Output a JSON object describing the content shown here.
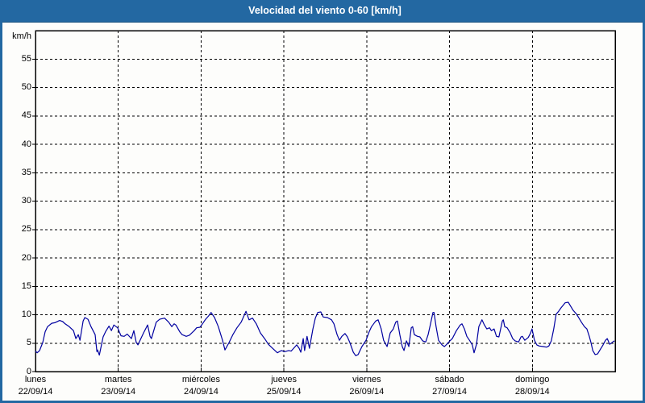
{
  "title": "Velocidad del viento 0-60 [km/h]",
  "colors": {
    "title_bar": "#2368A2",
    "title_text": "#FFFFFF",
    "frame": "#2368A2",
    "plot_border": "#000000",
    "grid": "#000000",
    "line": "#0000A0",
    "background": "#FDFDFB"
  },
  "chart_data": {
    "type": "line",
    "title": "Velocidad del viento 0-60 [km/h]",
    "y_unit_label": "km/h",
    "ylim": [
      0,
      60
    ],
    "ytick_step": 5,
    "ytick_labels": [
      "0",
      "5",
      "10",
      "15",
      "20",
      "25",
      "30",
      "35",
      "40",
      "45",
      "50",
      "55"
    ],
    "xlim": [
      0,
      168
    ],
    "x_unit": "hours",
    "grid": "dashed",
    "legend": "none",
    "x_axis_days": [
      {
        "name": "lunes",
        "date": "22/09/14"
      },
      {
        "name": "martes",
        "date": "23/09/14"
      },
      {
        "name": "miércoles",
        "date": "24/09/14"
      },
      {
        "name": "jueves",
        "date": "25/09/14"
      },
      {
        "name": "viernes",
        "date": "26/09/14"
      },
      {
        "name": "sábado",
        "date": "27/09/14"
      },
      {
        "name": "domingo",
        "date": "28/09/14"
      }
    ],
    "series": [
      {
        "name": "velocidad-del-viento",
        "color": "#0000A0",
        "points": [
          [
            0,
            3.6
          ],
          [
            0.5,
            3.3
          ],
          [
            1.2,
            3.7
          ],
          [
            2.1,
            5.1
          ],
          [
            2.8,
            7
          ],
          [
            3.5,
            7.9
          ],
          [
            4.7,
            8.5
          ],
          [
            5.6,
            8.6
          ],
          [
            7,
            9
          ],
          [
            7.9,
            8.8
          ],
          [
            8.6,
            8.4
          ],
          [
            9.8,
            7.9
          ],
          [
            11,
            7.2
          ],
          [
            11.7,
            5.8
          ],
          [
            12.4,
            6.5
          ],
          [
            12.9,
            5.5
          ],
          [
            13.8,
            8.9
          ],
          [
            14.3,
            9.5
          ],
          [
            15.2,
            9.2
          ],
          [
            16.1,
            7.9
          ],
          [
            17.3,
            6.5
          ],
          [
            17.8,
            3.5
          ],
          [
            18,
            3.8
          ],
          [
            18.5,
            2.9
          ],
          [
            19.6,
            6.1
          ],
          [
            20.3,
            7
          ],
          [
            21.3,
            8
          ],
          [
            22,
            7.2
          ],
          [
            22.7,
            8.2
          ],
          [
            23.8,
            7.7
          ],
          [
            24.8,
            6.3
          ],
          [
            25.7,
            6.2
          ],
          [
            26.6,
            6.6
          ],
          [
            27.8,
            5.8
          ],
          [
            28.5,
            7.2
          ],
          [
            29.2,
            5.1
          ],
          [
            29.7,
            4.7
          ],
          [
            31.3,
            6.8
          ],
          [
            32.5,
            8.2
          ],
          [
            33.2,
            6.2
          ],
          [
            33.6,
            5.8
          ],
          [
            35,
            8.7
          ],
          [
            36,
            9.2
          ],
          [
            37.4,
            9.4
          ],
          [
            38.6,
            8.7
          ],
          [
            39.5,
            7.9
          ],
          [
            40.2,
            8.4
          ],
          [
            40.7,
            8.2
          ],
          [
            41.8,
            7
          ],
          [
            42.5,
            6.5
          ],
          [
            43.7,
            6.2
          ],
          [
            44.6,
            6.4
          ],
          [
            46,
            7.2
          ],
          [
            46.7,
            7.7
          ],
          [
            47.7,
            7.8
          ],
          [
            48.4,
            8.4
          ],
          [
            49.3,
            9.2
          ],
          [
            50.2,
            9.8
          ],
          [
            50.9,
            10.4
          ],
          [
            51.9,
            9.5
          ],
          [
            53,
            7.9
          ],
          [
            54.2,
            5.5
          ],
          [
            54.9,
            3.8
          ],
          [
            56.1,
            5.1
          ],
          [
            57.2,
            6.5
          ],
          [
            58.4,
            7.7
          ],
          [
            59.6,
            8.7
          ],
          [
            61,
            10.6
          ],
          [
            61.9,
            9.1
          ],
          [
            62.9,
            9.4
          ],
          [
            64,
            8.4
          ],
          [
            65.2,
            6.8
          ],
          [
            66.4,
            5.8
          ],
          [
            67.5,
            4.8
          ],
          [
            68.7,
            4.1
          ],
          [
            70.1,
            3.3
          ],
          [
            71.3,
            3.7
          ],
          [
            72.2,
            3.5
          ],
          [
            73.4,
            3.7
          ],
          [
            74.1,
            3.6
          ],
          [
            75.7,
            4.7
          ],
          [
            76.4,
            4.1
          ],
          [
            76.9,
            3.4
          ],
          [
            77.6,
            5.8
          ],
          [
            78,
            3.7
          ],
          [
            78.7,
            6.2
          ],
          [
            79.4,
            4.1
          ],
          [
            80.4,
            7.5
          ],
          [
            81.1,
            9.4
          ],
          [
            81.8,
            10.4
          ],
          [
            82.7,
            10.5
          ],
          [
            83.4,
            9.6
          ],
          [
            84.6,
            9.5
          ],
          [
            85.8,
            9.1
          ],
          [
            86.5,
            8.4
          ],
          [
            87.4,
            6.5
          ],
          [
            88.1,
            5.5
          ],
          [
            88.8,
            6.2
          ],
          [
            89.7,
            6.7
          ],
          [
            90.4,
            6.1
          ],
          [
            91.1,
            5.1
          ],
          [
            92.1,
            3.4
          ],
          [
            92.8,
            2.8
          ],
          [
            93.5,
            3
          ],
          [
            94.6,
            4.4
          ],
          [
            95.8,
            5.5
          ],
          [
            96.7,
            7
          ],
          [
            97.4,
            7.9
          ],
          [
            98.6,
            8.9
          ],
          [
            99.3,
            9.1
          ],
          [
            100.2,
            7.5
          ],
          [
            100.9,
            5.5
          ],
          [
            101.9,
            4.4
          ],
          [
            102.8,
            6.8
          ],
          [
            103.7,
            7.5
          ],
          [
            104.4,
            8.7
          ],
          [
            104.9,
            8.9
          ],
          [
            105.6,
            6.5
          ],
          [
            106.3,
            4.4
          ],
          [
            106.8,
            3.7
          ],
          [
            107.5,
            5.4
          ],
          [
            108.2,
            4.4
          ],
          [
            108.9,
            7.7
          ],
          [
            109.3,
            7.9
          ],
          [
            109.8,
            6.5
          ],
          [
            110.7,
            6.2
          ],
          [
            111.4,
            6.1
          ],
          [
            112.2,
            5.4
          ],
          [
            113.1,
            5.2
          ],
          [
            113.8,
            6.5
          ],
          [
            114.5,
            8.4
          ],
          [
            115.2,
            10.4
          ],
          [
            115.5,
            10.4
          ],
          [
            116.1,
            7.9
          ],
          [
            116.8,
            5.5
          ],
          [
            117.8,
            4.7
          ],
          [
            118.5,
            4.4
          ],
          [
            119.2,
            4.8
          ],
          [
            120.1,
            5.4
          ],
          [
            120.8,
            5.8
          ],
          [
            122,
            7.2
          ],
          [
            123.1,
            8.2
          ],
          [
            123.6,
            8.4
          ],
          [
            124.3,
            7.5
          ],
          [
            125,
            6.2
          ],
          [
            125.9,
            5.4
          ],
          [
            126.6,
            4.7
          ],
          [
            127.1,
            3.3
          ],
          [
            127.8,
            4.8
          ],
          [
            128.5,
            7.9
          ],
          [
            129.4,
            9.1
          ],
          [
            130.1,
            8.2
          ],
          [
            130.8,
            7.5
          ],
          [
            131.6,
            7.7
          ],
          [
            132.1,
            7.2
          ],
          [
            132.9,
            7.5
          ],
          [
            133.6,
            6.2
          ],
          [
            134.3,
            6.1
          ],
          [
            135.3,
            8.9
          ],
          [
            135.6,
            9.1
          ],
          [
            136,
            7.9
          ],
          [
            136.7,
            7.7
          ],
          [
            137.6,
            6.8
          ],
          [
            138.3,
            5.8
          ],
          [
            139,
            5.4
          ],
          [
            140,
            5.2
          ],
          [
            140.7,
            6.1
          ],
          [
            141.1,
            6.2
          ],
          [
            141.8,
            5.5
          ],
          [
            142.8,
            6
          ],
          [
            143.5,
            6.8
          ],
          [
            143.9,
            7.5
          ],
          [
            144.6,
            5.5
          ],
          [
            145.3,
            4.7
          ],
          [
            146,
            4.5
          ],
          [
            147.2,
            4.4
          ],
          [
            148.1,
            4.3
          ],
          [
            148.8,
            4.5
          ],
          [
            149.5,
            5.4
          ],
          [
            150.2,
            7.5
          ],
          [
            150.9,
            10.1
          ],
          [
            151.6,
            10.6
          ],
          [
            152.3,
            11.2
          ],
          [
            153.5,
            12.1
          ],
          [
            154.4,
            12.2
          ],
          [
            155.1,
            11.5
          ],
          [
            155.8,
            10.8
          ],
          [
            156.8,
            10.1
          ],
          [
            157.5,
            9.4
          ],
          [
            158.2,
            8.7
          ],
          [
            159.1,
            7.9
          ],
          [
            159.8,
            7.5
          ],
          [
            160.5,
            6.2
          ],
          [
            161,
            5.1
          ],
          [
            161.5,
            3.7
          ],
          [
            162.2,
            3
          ],
          [
            162.9,
            3.1
          ],
          [
            163.8,
            4
          ],
          [
            164.5,
            4.7
          ],
          [
            165.2,
            5.5
          ],
          [
            165.7,
            5.8
          ],
          [
            166.4,
            4.8
          ],
          [
            167.3,
            5.2
          ],
          [
            167.8,
            5.4
          ]
        ]
      }
    ]
  }
}
